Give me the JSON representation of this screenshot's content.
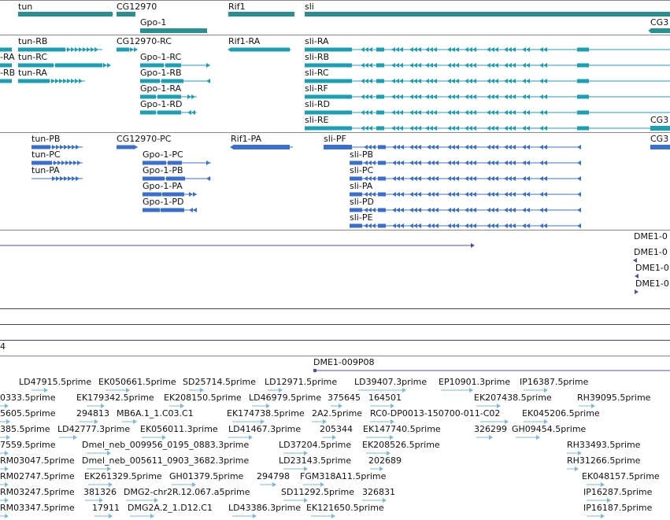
{
  "colors": {
    "gene": "#2a8f93",
    "transcript_a": "#1a9fb5",
    "transcript_b": "#3a6fcb",
    "clone": "#5b4aa8",
    "est": "#7bbad8"
  },
  "track_gene": {
    "labels": [
      "tun",
      "CG12970",
      "Gpo-1",
      "Rif1",
      "sli",
      "CG3"
    ]
  },
  "track_transcripts_a": {
    "labels": [
      "-RA",
      "-RB",
      "tun-RB",
      "tun-RC",
      "tun-RA",
      "CG12970-RC",
      "Gpo-1-RC",
      "Gpo-1-RB",
      "Gpo-1-RA",
      "Gpo-1-RD",
      "Rif1-RA",
      "sli-RA",
      "sli-RB",
      "sli-RC",
      "sli-RF",
      "sli-RD",
      "sli-RE",
      "CG3"
    ]
  },
  "track_transcripts_b": {
    "labels": [
      "tun-PB",
      "tun-PC",
      "tun-PA",
      "CG12970-PC",
      "Gpo-1-PC",
      "Gpo-1-PB",
      "Gpo-1-PA",
      "Gpo-1-PD",
      "Rif1-PA",
      "sli-PF",
      "sli-PB",
      "sli-PC",
      "sli-PA",
      "sli-PD",
      "sli-PE",
      "CG3"
    ]
  },
  "track_clones": {
    "labels": [
      "DME1-0",
      "DME1-0",
      "DME1-0",
      "DME1-0"
    ],
    "label_4": "4",
    "clone_label": "DME1-009P08"
  },
  "track_est": {
    "labels": [
      "LD47915.5prime",
      "EK050661.5prime",
      "SD25714.5prime",
      "LD12971.5prime",
      "LD39407.3prime",
      "EP10901.3prime",
      "IP16387.5prime",
      "0333.5prime",
      "EK179342.5prime",
      "EK208150.5prime",
      "LD46979.5prime",
      "375645",
      "164501",
      "EK207438.5prime",
      "RH39095.5prime",
      "5605.5prime",
      "294813",
      "MB6A.1_1.C03.C1",
      "EK174738.5prime",
      "2A2.5prime",
      "RC0-DP0013-150700-011-C02",
      "EK045206.5prime",
      "385.5prime",
      "LD42777.3prime",
      "EK056011.3prime",
      "LD41467.3prime",
      "205344",
      "EK147740.5prime",
      "326299",
      "GH09454.5prime",
      "7559.5prime",
      "Dmel_neb_009956_0195_0883.3prime",
      "LD37204.5prime",
      "EK208526.5prime",
      "RH33493.5prime",
      "RM03047.5prime",
      "Dmel_neb_005611_0903_3682.3prime",
      "LD23143.5prime",
      "202689",
      "RH31266.5prime",
      "RM02747.5prime",
      "EK261329.5prime",
      "GH01379.5prime",
      "294798",
      "FGM318A11.5prime",
      "EK048157.5prime",
      "RM03247.5prime",
      "381326",
      "DMG2-chr2R.12.067.a5prime",
      "SD11292.5prime",
      "326831",
      "IP16287.5prime",
      "RM03347.5prime",
      "17911",
      "DMG2A.2_1.D12.C1",
      "LD43386.3prime",
      "EK121650.5prime",
      "IP16187.5prime"
    ]
  }
}
